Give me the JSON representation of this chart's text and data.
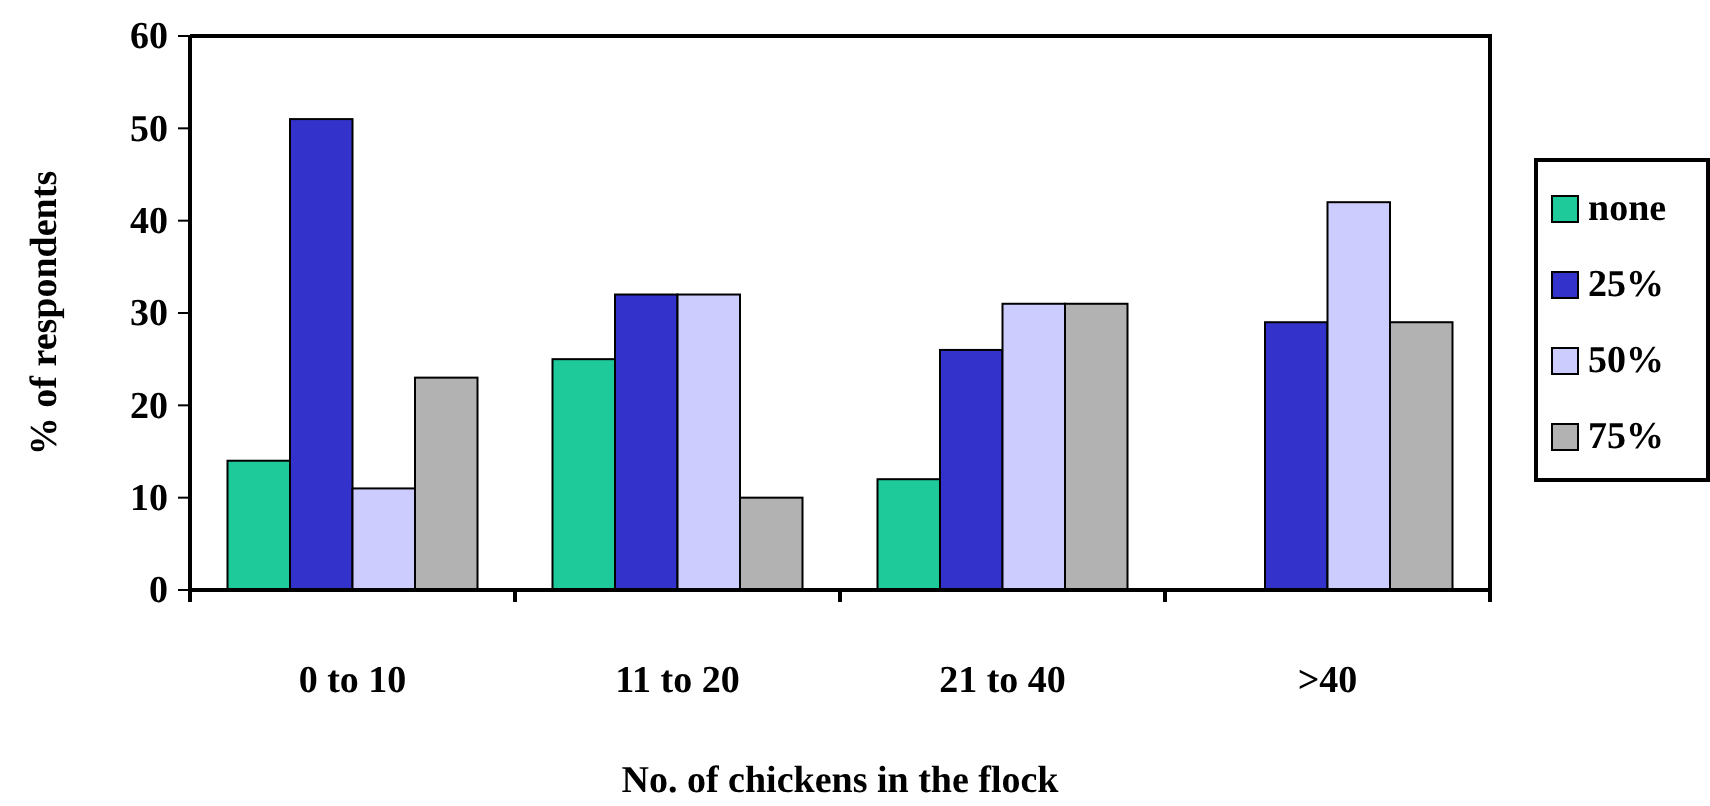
{
  "chart_data": {
    "type": "bar",
    "xlabel": "No. of chickens in the flock",
    "ylabel": "% of respondents",
    "categories": [
      "0 to 10",
      "11 to 20",
      "21 to 40",
      ">40"
    ],
    "series": [
      {
        "name": "none",
        "color": "#1ec99a",
        "values": [
          14,
          25,
          12,
          0
        ]
      },
      {
        "name": "25%",
        "color": "#3333cc",
        "values": [
          51,
          32,
          26,
          29
        ]
      },
      {
        "name": "50%",
        "color": "#ccccff",
        "values": [
          11,
          32,
          31,
          42
        ]
      },
      {
        "name": "75%",
        "color": "#b2b2b2",
        "values": [
          23,
          10,
          31,
          29
        ]
      }
    ],
    "ylim": [
      0,
      60
    ],
    "yticks": [
      0,
      10,
      20,
      30,
      40,
      50,
      60
    ],
    "legend": "right"
  }
}
